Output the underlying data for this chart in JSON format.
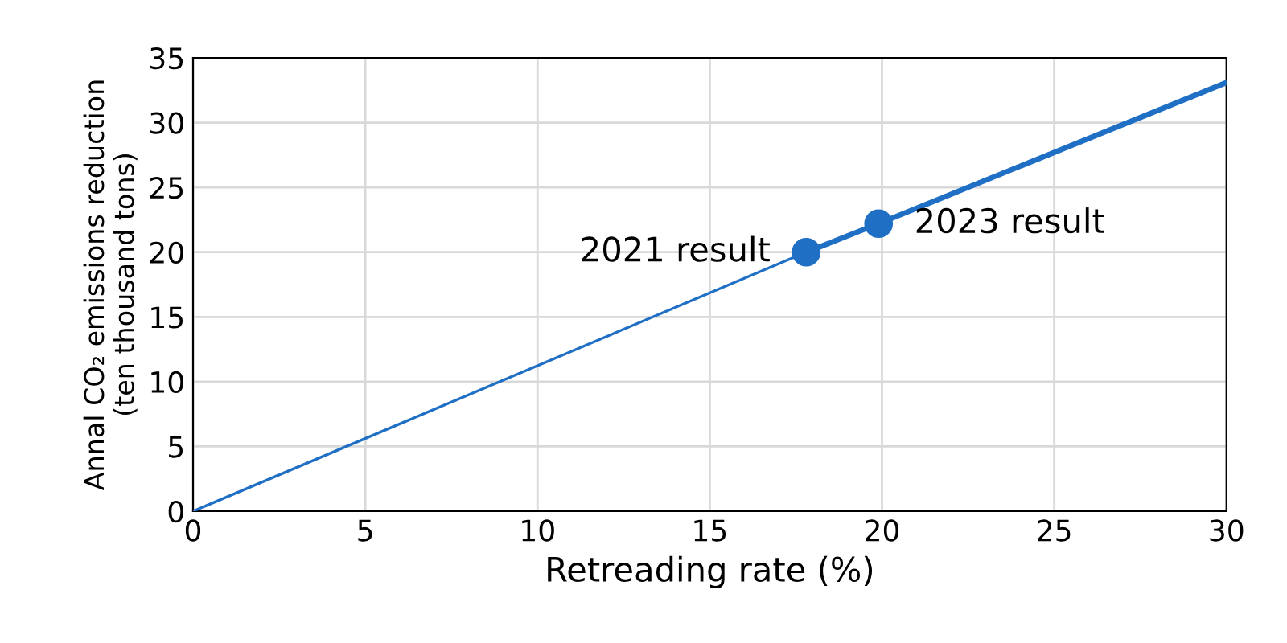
{
  "chart_data": {
    "type": "line",
    "xlabel": "Retreading rate (%)",
    "ylabel": "Annal CO₂ emissions reduction\n(ten thousand tons)",
    "series": [
      {
        "color": "#1f6fc5",
        "x": [
          0,
          17.8
        ],
        "values": [
          0,
          20.0
        ]
      },
      {
        "color": "#1f6fc5",
        "x": [
          17.8,
          19.9,
          30
        ],
        "values": [
          20.0,
          22.2,
          33.1
        ]
      },
      {
        "type": "scatter",
        "color": "#1f6fc5",
        "x": [
          17.8,
          19.9
        ],
        "values": [
          20.0,
          22.2
        ],
        "marker": "circle"
      }
    ],
    "annotations": [
      {
        "text": "2021 result",
        "x": 17.8,
        "y": 20.0
      },
      {
        "text": "2023 result",
        "x": 19.9,
        "y": 22.2
      }
    ],
    "xlim": [
      0,
      30
    ],
    "xticks": [
      0,
      5,
      10,
      15,
      20,
      25,
      30
    ],
    "ylim": [
      0,
      35
    ],
    "yticks": [
      0,
      5,
      10,
      15,
      20,
      25,
      30,
      35
    ],
    "grid": true,
    "legend": false
  }
}
